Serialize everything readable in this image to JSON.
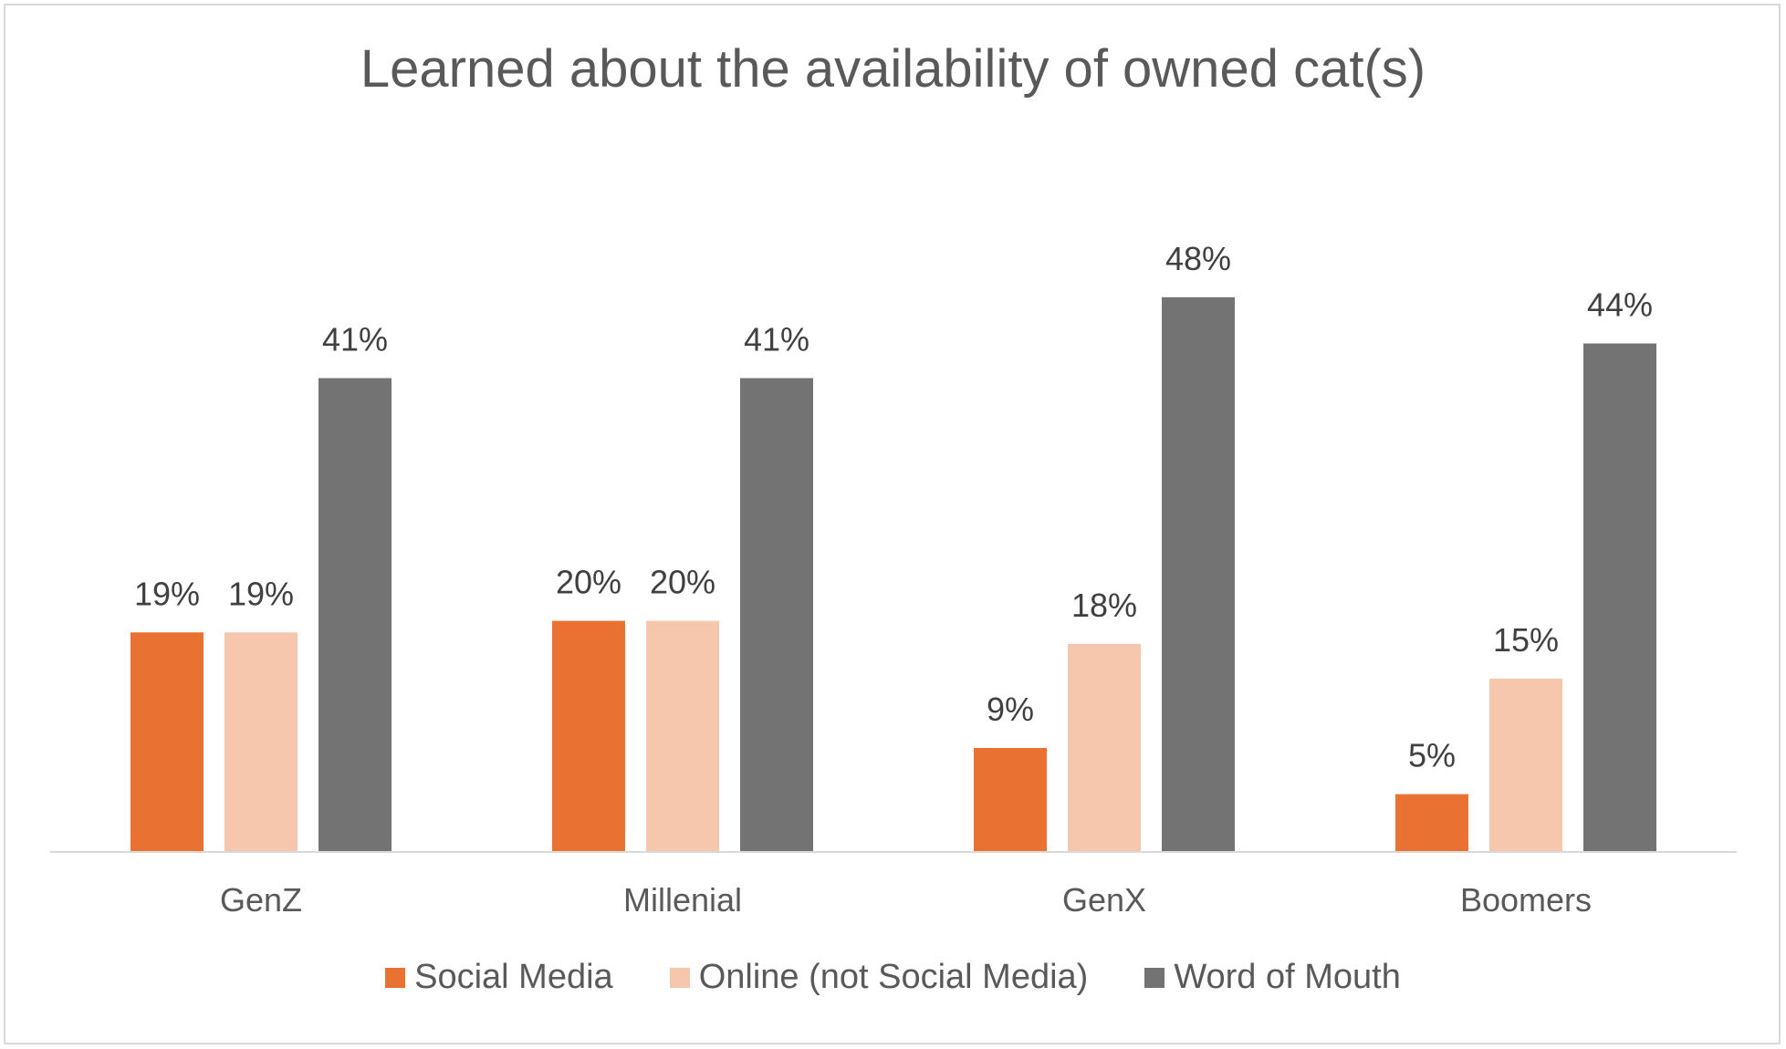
{
  "chart_data": {
    "type": "bar",
    "title": "Learned about the availability of owned cat(s)",
    "categories": [
      "GenZ",
      "Millenial",
      "GenX",
      "Boomers"
    ],
    "series": [
      {
        "name": "Social Media",
        "color": "#e97132",
        "values": [
          19,
          20,
          9,
          5
        ],
        "labels": [
          "19%",
          "20%",
          "9%",
          "5%"
        ]
      },
      {
        "name": "Online (not Social Media)",
        "color": "#f6c6ad",
        "values": [
          19,
          20,
          18,
          15
        ],
        "labels": [
          "19%",
          "20%",
          "18%",
          "15%"
        ]
      },
      {
        "name": "Word of Mouth",
        "color": "#737373",
        "values": [
          41,
          41,
          48,
          44
        ],
        "labels": [
          "41%",
          "41%",
          "48%",
          "44%"
        ]
      }
    ],
    "ylim": [
      0,
      60
    ],
    "value_format": "percent",
    "grid": false,
    "legend_position": "bottom"
  }
}
